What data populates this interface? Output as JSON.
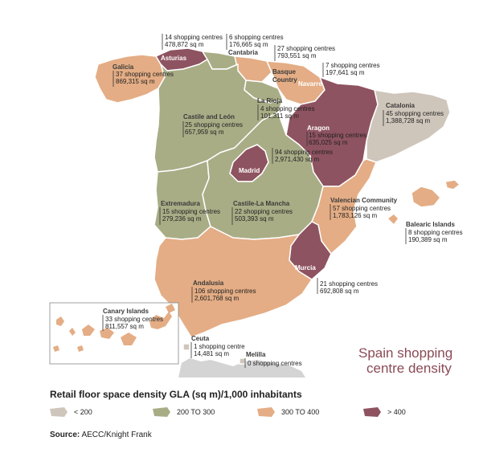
{
  "title": {
    "line1": "Spain shopping",
    "line2": "centre density"
  },
  "legend": {
    "title": "Retail floor space density GLA (sq m)/1,000 inhabitants",
    "items": [
      {
        "label": "< 200",
        "color": "#cfc6bb"
      },
      {
        "label": "200 TO 300",
        "color": "#a9ad86"
      },
      {
        "label": "300 TO 400",
        "color": "#e4ad85"
      },
      {
        "label": "> 400",
        "color": "#8e5360"
      }
    ]
  },
  "source": {
    "label": "Source:",
    "text": "AECC/Knight Frank"
  },
  "regions": {
    "galicia": {
      "name": "Galicia",
      "centres": "37 shopping centres",
      "area": "869,315 sq m",
      "class": "300 TO 400"
    },
    "asturias": {
      "name": "Asturias",
      "centres": "14 shopping centres",
      "area": "478,872 sq m",
      "class": "> 400"
    },
    "cantabria": {
      "name": "Cantabria",
      "centres": "6 shopping centres",
      "area": "176,665 sq m",
      "class": "200 TO 300"
    },
    "basque": {
      "name1": "Basque",
      "name2": "Country",
      "centres": "27 shopping centres",
      "area": "793,551 sq m",
      "class": "300 TO 400"
    },
    "navarre": {
      "name": "Navarre",
      "centres": "7 shopping centres",
      "area": "197,641 sq m",
      "class": "300 TO 400"
    },
    "larioja": {
      "name": "La Rioja",
      "centres": "4 shopping centres",
      "area": "101,311 sq m",
      "class": "200 TO 300"
    },
    "castileleon": {
      "name": "Castile and León",
      "centres": "25 shopping centres",
      "area": "657,959 sq m",
      "class": "200 TO 300"
    },
    "aragon": {
      "name": "Aragon",
      "centres": "15 shopping centres",
      "area": "635,025 sq m",
      "class": "> 400"
    },
    "catalonia": {
      "name": "Catalonia",
      "centres": "45 shopping centres",
      "area": "1,388,728 sq m",
      "class": "< 200"
    },
    "madrid": {
      "name": "Madrid",
      "centres": "94 shopping centres",
      "area": "2,971,430 sq m",
      "class": "> 400"
    },
    "extremadura": {
      "name": "Extremadura",
      "centres": "15 shopping centres",
      "area": "279,236 sq m",
      "class": "200 TO 300"
    },
    "castilelamancha": {
      "name": "Castile-La Mancha",
      "centres": "22 shopping centres",
      "area": "503,393 sq m",
      "class": "200 TO 300"
    },
    "valencia": {
      "name": "Valencian Community",
      "centres": "57 shopping centres",
      "area": "1,783,126 sq m",
      "class": "300 TO 400"
    },
    "balearic": {
      "name": "Balearic Islands",
      "centres": "8 shopping centres",
      "area": "190,389 sq m",
      "class": "300 TO 400"
    },
    "murcia": {
      "name": "Murcia",
      "centres": "21 shopping centres",
      "area": "692,808 sq m",
      "class": "> 400"
    },
    "andalusia": {
      "name": "Andalusia",
      "centres": "106 shopping centres",
      "area": "2,601,768 sq m",
      "class": "300 TO 400"
    },
    "canary": {
      "name": "Canary Islands",
      "centres1": "33 shopping centres",
      "area": "811,557 sq m",
      "class": "300 TO 400"
    },
    "ceuta": {
      "name": "Ceuta",
      "centres": "1 shopping centre",
      "area": "14,481 sq m",
      "class": "< 200"
    },
    "melilla": {
      "name": "Melilla",
      "centres": "0 shopping centres",
      "class": "< 200"
    }
  }
}
